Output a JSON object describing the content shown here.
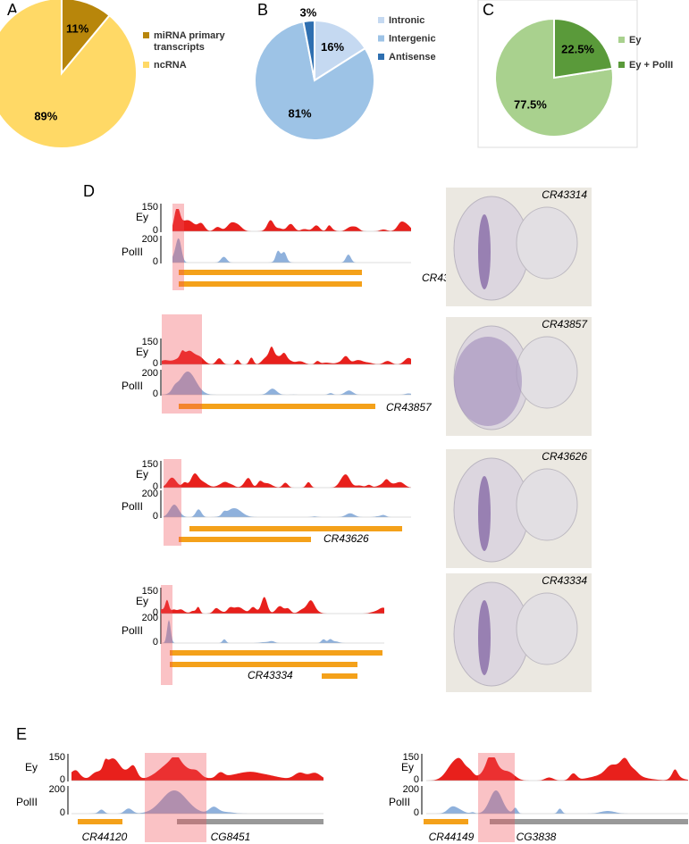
{
  "chart_data": [
    {
      "type": "pie",
      "panel_label": "A",
      "direction": "clockwise",
      "categories": [
        "miRNA primary transcripts",
        "ncRNA"
      ],
      "values": [
        11,
        89
      ],
      "value_labels": [
        "11%",
        "89%"
      ],
      "colors": [
        "#b8860b",
        "#ffd966"
      ]
    },
    {
      "type": "pie",
      "panel_label": "B",
      "direction": "clockwise",
      "categories": [
        "Intronic",
        "Intergenic",
        "Antisense"
      ],
      "values": [
        16,
        81,
        3
      ],
      "value_labels": [
        "16%",
        "81%",
        "3%"
      ],
      "colors": [
        "#c5d9f1",
        "#9dc3e6",
        "#2e6fb0"
      ]
    },
    {
      "type": "pie",
      "panel_label": "C",
      "direction": "counterclockwise",
      "categories": [
        "Ey",
        "Ey + PolII"
      ],
      "values": [
        77.5,
        22.5
      ],
      "value_labels": [
        "77.5%",
        "22.5%"
      ],
      "colors": [
        "#a9d18e",
        "#5a9a3a"
      ]
    }
  ],
  "track_labels": {
    "ey": "Ey",
    "polii": "PolII",
    "ey_max": "150",
    "zero": "0",
    "polii_max": "200"
  },
  "panel_d": {
    "label": "D",
    "genes": [
      "CR43314",
      "CR43857",
      "CR43626",
      "CR43334"
    ]
  },
  "panel_e": {
    "label": "E",
    "genes": [
      [
        "CR44120",
        "CG8451"
      ],
      [
        "CR44149",
        "CG3838"
      ]
    ]
  }
}
